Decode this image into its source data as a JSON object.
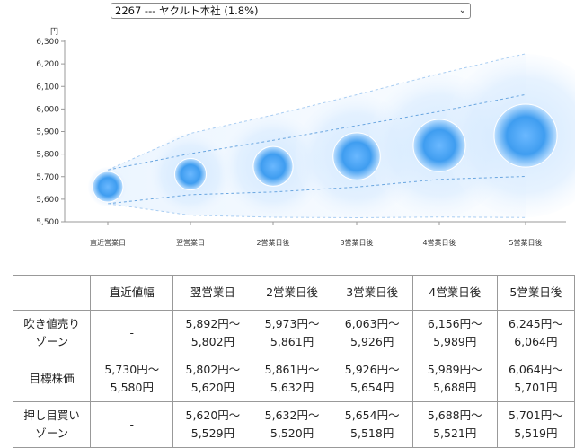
{
  "stock_select": {
    "value": "2267 --- ヤクルト本社 (1.8%)"
  },
  "chart_data": {
    "type": "scatter",
    "ylabel": "円",
    "ylim": [
      5500,
      6300
    ],
    "yticks": [
      "5,500",
      "5,600",
      "5,700",
      "5,800",
      "5,900",
      "6,000",
      "6,100",
      "6,200",
      "6,300"
    ],
    "categories": [
      "直近営業日",
      "翌営業日",
      "2営業日後",
      "3営業日後",
      "4営業日後",
      "5営業日後"
    ],
    "target_price": [
      5655,
      5711,
      5746,
      5790,
      5838,
      5882
    ],
    "upper_band": [
      5730,
      5802,
      5861,
      5926,
      5989,
      6064
    ],
    "lower_band": [
      5580,
      5620,
      5632,
      5654,
      5688,
      5701
    ],
    "outer_upper": [
      5730,
      5892,
      5973,
      6063,
      6156,
      6245
    ],
    "outer_lower": [
      5580,
      5529,
      5520,
      5518,
      5521,
      5519
    ],
    "grid": false
  },
  "table": {
    "headers": [
      "",
      "直近値幅",
      "翌営業日",
      "2営業日後",
      "3営業日後",
      "4営業日後",
      "5営業日後"
    ],
    "rows": [
      {
        "label": [
          "吹き値売り",
          "ゾーン"
        ],
        "cells": [
          [
            "-"
          ],
          [
            "5,892円〜",
            "5,802円"
          ],
          [
            "5,973円〜",
            "5,861円"
          ],
          [
            "6,063円〜",
            "5,926円"
          ],
          [
            "6,156円〜",
            "5,989円"
          ],
          [
            "6,245円〜",
            "6,064円"
          ]
        ]
      },
      {
        "label": [
          "目標株価"
        ],
        "cells": [
          [
            "5,730円〜",
            "5,580円"
          ],
          [
            "5,802円〜",
            "5,620円"
          ],
          [
            "5,861円〜",
            "5,632円"
          ],
          [
            "5,926円〜",
            "5,654円"
          ],
          [
            "5,989円〜",
            "5,688円"
          ],
          [
            "6,064円〜",
            "5,701円"
          ]
        ]
      },
      {
        "label": [
          "押し目買い",
          "ゾーン"
        ],
        "cells": [
          [
            "-"
          ],
          [
            "5,620円〜",
            "5,529円"
          ],
          [
            "5,632円〜",
            "5,520円"
          ],
          [
            "5,654円〜",
            "5,518円"
          ],
          [
            "5,688円〜",
            "5,521円"
          ],
          [
            "5,701円〜",
            "5,519円"
          ]
        ]
      }
    ]
  }
}
